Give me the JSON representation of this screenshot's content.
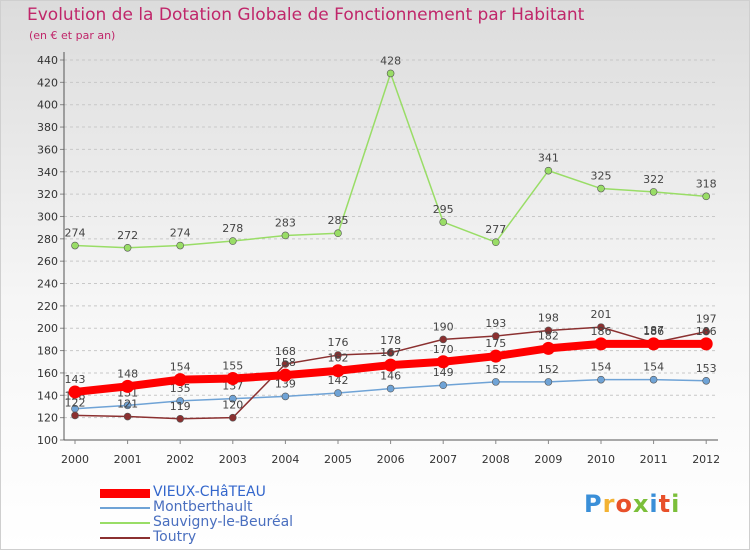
{
  "header": {
    "title": "Evolution de la Dotation Globale de Fonctionnement par Habitant",
    "subtitle": "(en € et par an)"
  },
  "logo": {
    "text": "Proxiti",
    "colors": [
      "#3a8fd8",
      "#f3b233",
      "#e8502a",
      "#7bbf3a",
      "#3a8fd8",
      "#e8502a",
      "#7bbf3a"
    ]
  },
  "chart_data": {
    "type": "line",
    "title": "Evolution de la Dotation Globale de Fonctionnement par Habitant",
    "subtitle": "(en € et par an)",
    "xlabel": "",
    "ylabel": "",
    "ylim": [
      100,
      440
    ],
    "yticks": [
      100,
      120,
      140,
      160,
      180,
      200,
      220,
      240,
      260,
      280,
      300,
      320,
      340,
      360,
      380,
      400,
      420,
      440
    ],
    "grid": true,
    "legend_position": "bottom-left",
    "categories": [
      "2000",
      "2001",
      "2002",
      "2003",
      "2004",
      "2005",
      "2006",
      "2007",
      "2008",
      "2009",
      "2010",
      "2011",
      "2012"
    ],
    "series": [
      {
        "name": "VIEUX-CHâTEAU",
        "color": "#ff0000",
        "style": "thick",
        "values": [
          143,
          148,
          154,
          155,
          158,
          162,
          167,
          170,
          175,
          182,
          186,
          186,
          186
        ]
      },
      {
        "name": "Montberthault",
        "color": "#6fa3d6",
        "style": "thin",
        "values": [
          128,
          131,
          135,
          137,
          139,
          142,
          146,
          149,
          152,
          152,
          154,
          154,
          153
        ]
      },
      {
        "name": "Sauvigny-le-Beuréal",
        "color": "#99dd66",
        "style": "thin",
        "values": [
          274,
          272,
          274,
          278,
          283,
          285,
          428,
          295,
          277,
          341,
          325,
          322,
          318
        ]
      },
      {
        "name": "Toutry",
        "color": "#8b3030",
        "style": "thin",
        "values": [
          122,
          121,
          119,
          120,
          168,
          176,
          178,
          190,
          193,
          198,
          201,
          187,
          197
        ]
      }
    ]
  }
}
